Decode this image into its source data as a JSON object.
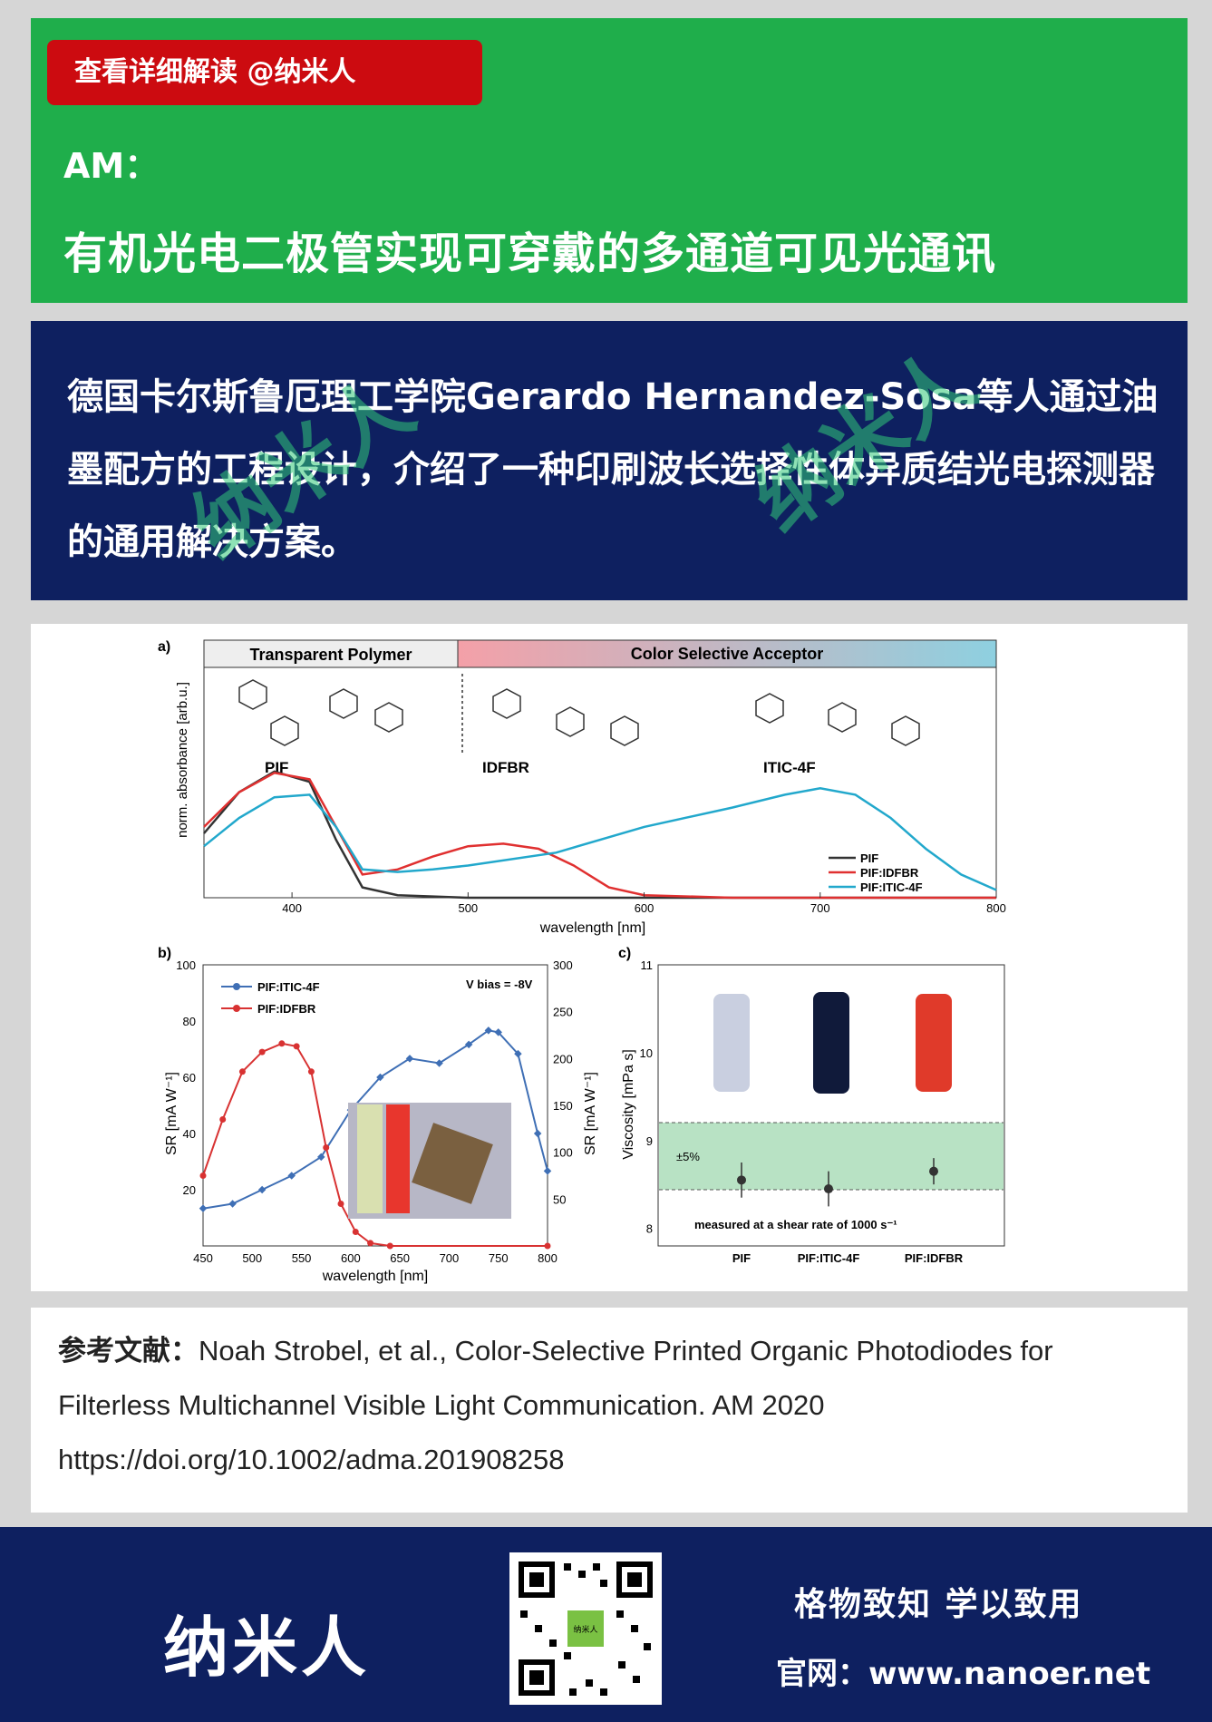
{
  "header": {
    "tag": "查看详细解读 @纳米人",
    "journal": "AM：",
    "title": "有机光电二极管实现可穿戴的多通道可见光通讯"
  },
  "intro": {
    "text": "德国卡尔斯鲁厄理工学院Gerardo Hernandez-Sosa等人通过油墨配方的工程设计，介绍了一种印刷波长选择性体异质结光电探测器的通用解决方案。",
    "watermark": "纳米人"
  },
  "figure": {
    "panel_a": {
      "label": "a)",
      "header_left": "Transparent Polymer",
      "header_right": "Color Selective Acceptor",
      "mol_pif": "PIF",
      "mol_idfbr": "IDFBR",
      "mol_itic": "ITIC-4F",
      "ylabel": "norm. absorbance [arb.u.]",
      "xlabel": "wavelength [nm]",
      "xticks": [
        "400",
        "500",
        "600",
        "700",
        "800"
      ]
    },
    "panel_b": {
      "label": "b)",
      "ylabel_left": "SR  [mA W⁻¹]",
      "ylabel_right": "SR  [mA W⁻¹]",
      "xlabel": "wavelength [nm]",
      "bias": "V bias = -8V",
      "xticks": [
        "450",
        "500",
        "550",
        "600",
        "650",
        "700",
        "750",
        "800"
      ],
      "yticks_left": [
        "20",
        "40",
        "60",
        "80",
        "100"
      ],
      "yticks_right": [
        "50",
        "100",
        "150",
        "200",
        "250",
        "300"
      ]
    },
    "panel_c": {
      "label": "c)",
      "ylabel": "Viscosity [mPa s]",
      "note": "measured at a shear rate of 1000 s⁻¹",
      "band": "±5%",
      "yticks": [
        "8",
        "9",
        "10",
        "11"
      ],
      "categories": [
        "PIF",
        "PIF:ITIC-4F",
        "PIF:IDFBR"
      ]
    }
  },
  "chart_data": [
    {
      "type": "line",
      "title": "",
      "xlabel": "wavelength [nm]",
      "ylabel": "norm. absorbance [arb.u.]",
      "xlim": [
        350,
        800
      ],
      "ylim": [
        0,
        1
      ],
      "series": [
        {
          "name": "PIF",
          "color": "#333333",
          "x": [
            350,
            370,
            390,
            410,
            425,
            440,
            460,
            480,
            500,
            550,
            600,
            700,
            800
          ],
          "y": [
            0.5,
            0.82,
            0.98,
            0.9,
            0.45,
            0.08,
            0.02,
            0.01,
            0.0,
            0.0,
            0.0,
            0.0,
            0.0
          ]
        },
        {
          "name": "PIF:IDFBR",
          "color": "#e03030",
          "x": [
            350,
            370,
            390,
            410,
            425,
            440,
            460,
            480,
            500,
            520,
            540,
            560,
            580,
            600,
            650,
            700,
            800
          ],
          "y": [
            0.55,
            0.82,
            0.97,
            0.92,
            0.55,
            0.18,
            0.22,
            0.32,
            0.4,
            0.42,
            0.38,
            0.25,
            0.08,
            0.02,
            0.0,
            0.0,
            0.0
          ]
        },
        {
          "name": "PIF:ITIC-4F",
          "color": "#22a8cc",
          "x": [
            350,
            370,
            390,
            410,
            425,
            440,
            460,
            480,
            500,
            550,
            600,
            650,
            680,
            700,
            720,
            740,
            760,
            780,
            800
          ],
          "y": [
            0.4,
            0.62,
            0.78,
            0.8,
            0.55,
            0.22,
            0.2,
            0.22,
            0.25,
            0.35,
            0.55,
            0.7,
            0.8,
            0.85,
            0.8,
            0.62,
            0.38,
            0.18,
            0.06
          ]
        }
      ]
    },
    {
      "type": "line",
      "title": "",
      "xlabel": "wavelength [nm]",
      "ylabel": "SR [mA W-1]",
      "xlim": [
        450,
        800
      ],
      "ylim": [
        0,
        100
      ],
      "y2lim": [
        0,
        300
      ],
      "series": [
        {
          "name": "PIF:ITIC-4F",
          "axis": "right",
          "color": "#3f6fb5",
          "x": [
            450,
            480,
            510,
            540,
            570,
            600,
            630,
            660,
            690,
            720,
            740,
            750,
            770,
            790,
            800
          ],
          "y": [
            40,
            45,
            60,
            75,
            95,
            145,
            180,
            200,
            195,
            215,
            230,
            228,
            205,
            120,
            80
          ]
        },
        {
          "name": "PIF:IDFBR",
          "axis": "left",
          "color": "#d83232",
          "x": [
            450,
            470,
            490,
            510,
            530,
            545,
            560,
            575,
            590,
            605,
            620,
            640,
            800
          ],
          "y": [
            25,
            45,
            62,
            69,
            72,
            71,
            62,
            35,
            15,
            5,
            1,
            0,
            0
          ]
        }
      ]
    },
    {
      "type": "scatter",
      "title": "",
      "ylabel": "Viscosity [mPa s]",
      "categories": [
        "PIF",
        "PIF:ITIC-4F",
        "PIF:IDFBR"
      ],
      "values": [
        8.55,
        8.45,
        8.65
      ],
      "errors": [
        0.2,
        0.2,
        0.15
      ],
      "ylim": [
        7.8,
        11
      ]
    }
  ],
  "reference": {
    "label": "参考文献：",
    "line1": "Noah Strobel, et al., Color-Selective Printed Organic Photodiodes for",
    "line2": "Filterless Multichannel Visible Light Communication. AM 2020",
    "line3": "https://doi.org/10.1002/adma.201908258"
  },
  "footer": {
    "brand": "纳米人",
    "qr_label": "纳米人",
    "motto": "格物致知   学以致用",
    "site": "官网：www.nanoer.net"
  }
}
